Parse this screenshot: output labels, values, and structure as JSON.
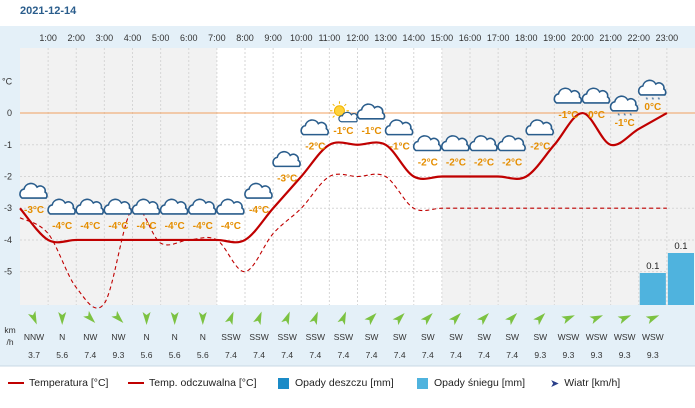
{
  "date": "2021-12-14",
  "axis": {
    "y_unit_label": "°C",
    "wind_unit_label_1": "km",
    "wind_unit_label_2": "/h"
  },
  "hours": [
    "1:00",
    "2:00",
    "3:00",
    "4:00",
    "5:00",
    "6:00",
    "7:00",
    "8:00",
    "9:00",
    "10:00",
    "11:00",
    "12:00",
    "13:00",
    "14:00",
    "15:00",
    "16:00",
    "17:00",
    "18:00",
    "19:00",
    "20:00",
    "21:00",
    "22:00",
    "23:00"
  ],
  "chart_data": {
    "type": "line",
    "x": [
      1,
      2,
      3,
      4,
      5,
      6,
      7,
      8,
      9,
      10,
      11,
      12,
      13,
      14,
      15,
      16,
      17,
      18,
      19,
      20,
      21,
      22,
      23,
      24
    ],
    "y_ticks": [
      0,
      -1,
      -2,
      -3,
      -4,
      -5
    ],
    "y_tick_labels": [
      "0",
      "-1",
      "-2",
      "-3",
      "-4",
      "-5"
    ],
    "ylim": [
      -6.05,
      2.05
    ],
    "series": [
      {
        "name": "Temperatura [°C]",
        "style": "solid",
        "color": "#c00000",
        "values": [
          -3,
          -4,
          -4,
          -4,
          -4,
          -4,
          -4,
          -4,
          -4,
          -3,
          -2,
          -1,
          -1,
          -1,
          -2,
          -2,
          -2,
          -2,
          -2,
          -1,
          0,
          -1,
          -0.5,
          0
        ]
      },
      {
        "name": "Temp. odczuwalna [°C]",
        "style": "dashed",
        "color": "#c00000",
        "values": [
          -3.3,
          -3.8,
          -5.5,
          -6,
          -3,
          -4.1,
          -4,
          -4,
          -5,
          -3.8,
          -3,
          -2,
          -2,
          -2,
          -3,
          -3,
          -3,
          -3,
          -3,
          -3,
          -3,
          -3,
          -3,
          -3
        ]
      }
    ],
    "temp_labels": [
      "-3°C",
      "-4°C",
      "-4°C",
      "-4°C",
      "-4°C",
      "-4°C",
      "-4°C",
      "-4°C",
      "-4°C",
      "-3°C",
      "-2°C",
      "-1°C",
      "-1°C",
      "-1°C",
      "-2°C",
      "-2°C",
      "-2°C",
      "-2°C",
      "-2°C",
      "-1°C",
      "0°C",
      "-1°C",
      "0°C"
    ],
    "snow_bars": [
      {
        "hour": 22,
        "value": 0.1,
        "label": "0.1"
      },
      {
        "hour": 23,
        "value": 0.1,
        "label": "0.1"
      }
    ],
    "wind": {
      "directions": [
        "NNW",
        "N",
        "NW",
        "NW",
        "N",
        "N",
        "N",
        "SSW",
        "SSW",
        "SSW",
        "SSW",
        "SSW",
        "SW",
        "SW",
        "SW",
        "SW",
        "SW",
        "SW",
        "SW",
        "WSW",
        "WSW",
        "WSW",
        "WSW"
      ],
      "speeds": [
        "3.7",
        "5.6",
        "7.4",
        "9.3",
        "5.6",
        "5.6",
        "5.6",
        "7.4",
        "7.4",
        "7.4",
        "7.4",
        "7.4",
        "7.4",
        "7.4",
        "7.4",
        "7.4",
        "7.4",
        "7.4",
        "9.3",
        "9.3",
        "9.3",
        "9.3",
        "9.3"
      ]
    },
    "icons": [
      "cloud-icon",
      "cloud-icon",
      "cloud-icon",
      "cloud-icon",
      "cloud-icon",
      "cloud-icon",
      "cloud-icon",
      "cloud-icon",
      "cloud-icon",
      "cloud-icon",
      "cloud-icon",
      "partly-sunny-icon",
      "cloud-icon",
      "cloud-icon",
      "cloud-icon",
      "cloud-icon",
      "cloud-icon",
      "cloud-icon",
      "cloud-icon",
      "cloud-icon",
      "cloud-icon",
      "snow-cloud-icon",
      "snow-cloud-icon"
    ]
  },
  "legend": {
    "temp": "Temperatura [°C]",
    "feels": "Temp. odczuwalna [°C]",
    "rain": "Opady deszczu [mm]",
    "snow": "Opady śniegu [mm]",
    "wind": "Wiatr [km/h]"
  },
  "colors": {
    "temp": "#c00000",
    "rain": "#1a8bc7",
    "snow": "#4fb3de",
    "header": "#e4f0f8",
    "zero_line": "#f0a060",
    "date": "#2a5d8c"
  }
}
